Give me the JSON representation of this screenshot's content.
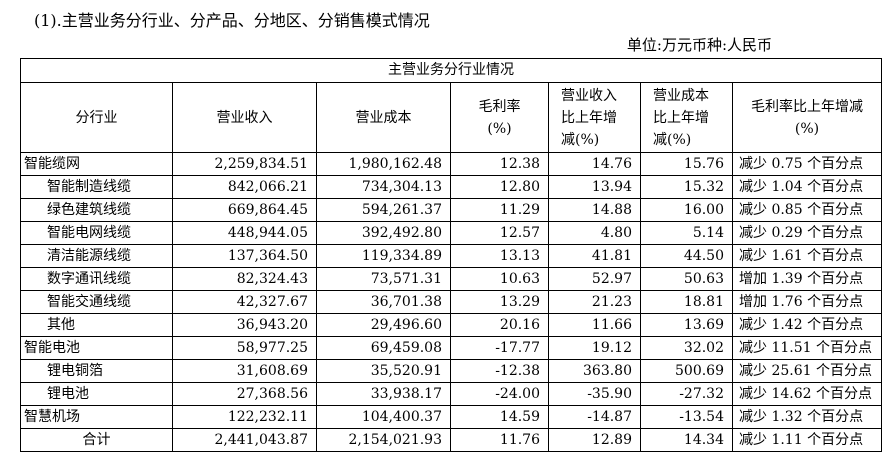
{
  "heading": "(1).主营业务分行业、分产品、分地区、分销售模式情况",
  "unit": "单位:万元币种:人民币",
  "table": {
    "caption": "主营业务分行业情况",
    "headers": [
      [
        "分行业"
      ],
      [
        "营业收入"
      ],
      [
        "营业成本"
      ],
      [
        "毛利率",
        "(%)"
      ],
      [
        "营业收入",
        "比上年增",
        "减(%)"
      ],
      [
        "营业成本",
        "比上年增",
        "减(%)"
      ],
      [
        "毛利率比上年增减",
        "(%)"
      ]
    ],
    "rows": [
      {
        "name": "智能缆网",
        "indent": false,
        "revenue": "2,259,834.51",
        "cost": "1,980,162.48",
        "margin": "12.38",
        "rev_chg": "14.76",
        "cost_chg": "15.76",
        "margin_chg": "减少 0.75 个百分点"
      },
      {
        "name": "智能制造线缆",
        "indent": true,
        "revenue": "842,066.21",
        "cost": "734,304.13",
        "margin": "12.80",
        "rev_chg": "13.94",
        "cost_chg": "15.32",
        "margin_chg": "减少 1.04 个百分点"
      },
      {
        "name": "绿色建筑线缆",
        "indent": true,
        "revenue": "669,864.45",
        "cost": "594,261.37",
        "margin": "11.29",
        "rev_chg": "14.88",
        "cost_chg": "16.00",
        "margin_chg": "减少 0.85 个百分点"
      },
      {
        "name": "智能电网线缆",
        "indent": true,
        "revenue": "448,944.05",
        "cost": "392,492.80",
        "margin": "12.57",
        "rev_chg": "4.80",
        "cost_chg": "5.14",
        "margin_chg": "减少 0.29 个百分点"
      },
      {
        "name": "清洁能源线缆",
        "indent": true,
        "revenue": "137,364.50",
        "cost": "119,334.89",
        "margin": "13.13",
        "rev_chg": "41.81",
        "cost_chg": "44.50",
        "margin_chg": "减少 1.61 个百分点"
      },
      {
        "name": "数字通讯线缆",
        "indent": true,
        "revenue": "82,324.43",
        "cost": "73,571.31",
        "margin": "10.63",
        "rev_chg": "52.97",
        "cost_chg": "50.63",
        "margin_chg": "增加 1.39 个百分点"
      },
      {
        "name": "智能交通线缆",
        "indent": true,
        "revenue": "42,327.67",
        "cost": "36,701.38",
        "margin": "13.29",
        "rev_chg": "21.23",
        "cost_chg": "18.81",
        "margin_chg": "增加 1.76 个百分点"
      },
      {
        "name": "其他",
        "indent": true,
        "revenue": "36,943.20",
        "cost": "29,496.60",
        "margin": "20.16",
        "rev_chg": "11.66",
        "cost_chg": "13.69",
        "margin_chg": "减少 1.42 个百分点"
      },
      {
        "name": "智能电池",
        "indent": false,
        "revenue": "58,977.25",
        "cost": "69,459.08",
        "margin": "-17.77",
        "rev_chg": "19.12",
        "cost_chg": "32.02",
        "margin_chg": "减少 11.51 个百分点"
      },
      {
        "name": "锂电铜箔",
        "indent": true,
        "revenue": "31,608.69",
        "cost": "35,520.91",
        "margin": "-12.38",
        "rev_chg": "363.80",
        "cost_chg": "500.69",
        "margin_chg": "减少 25.61 个百分点"
      },
      {
        "name": "锂电池",
        "indent": true,
        "revenue": "27,368.56",
        "cost": "33,938.17",
        "margin": "-24.00",
        "rev_chg": "-35.90",
        "cost_chg": "-27.32",
        "margin_chg": "减少 14.62 个百分点"
      },
      {
        "name": "智慧机场",
        "indent": false,
        "revenue": "122,232.11",
        "cost": "104,400.37",
        "margin": "14.59",
        "rev_chg": "-14.87",
        "cost_chg": "-13.54",
        "margin_chg": "减少 1.32 个百分点"
      },
      {
        "name": "合计",
        "indent": "total",
        "revenue": "2,441,043.87",
        "cost": "2,154,021.93",
        "margin": "11.76",
        "rev_chg": "12.89",
        "cost_chg": "14.34",
        "margin_chg": "减少 1.11 个百分点"
      }
    ]
  }
}
